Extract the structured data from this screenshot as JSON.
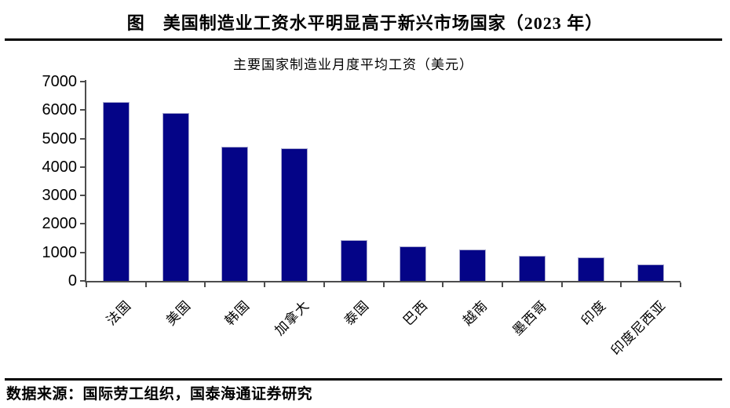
{
  "header": {
    "title": "图　美国制造业工资水平明显高于新兴市场国家（2023 年）"
  },
  "chart_data": {
    "type": "bar",
    "title": "主要国家制造业月度平均工资（美元）",
    "categories": [
      "法国",
      "美国",
      "韩国",
      "加拿大",
      "泰国",
      "巴西",
      "越南",
      "墨西哥",
      "印度",
      "印度尼西亚"
    ],
    "values": [
      6270,
      5900,
      4700,
      4670,
      1440,
      1210,
      1100,
      880,
      820,
      590
    ],
    "xlabel": "",
    "ylabel": "",
    "ylim": [
      0,
      7000
    ],
    "yticks": [
      0,
      1000,
      2000,
      3000,
      4000,
      5000,
      6000,
      7000
    ],
    "grid": false,
    "legend_position": "none",
    "x_label_rotation_deg": 45,
    "bar_color": "#040487",
    "bar_border_color": "#a9a9cf",
    "axis_color": "#4d4d4d"
  },
  "footer": {
    "source": "数据来源：国际劳工组织，国泰海通证券研究"
  }
}
